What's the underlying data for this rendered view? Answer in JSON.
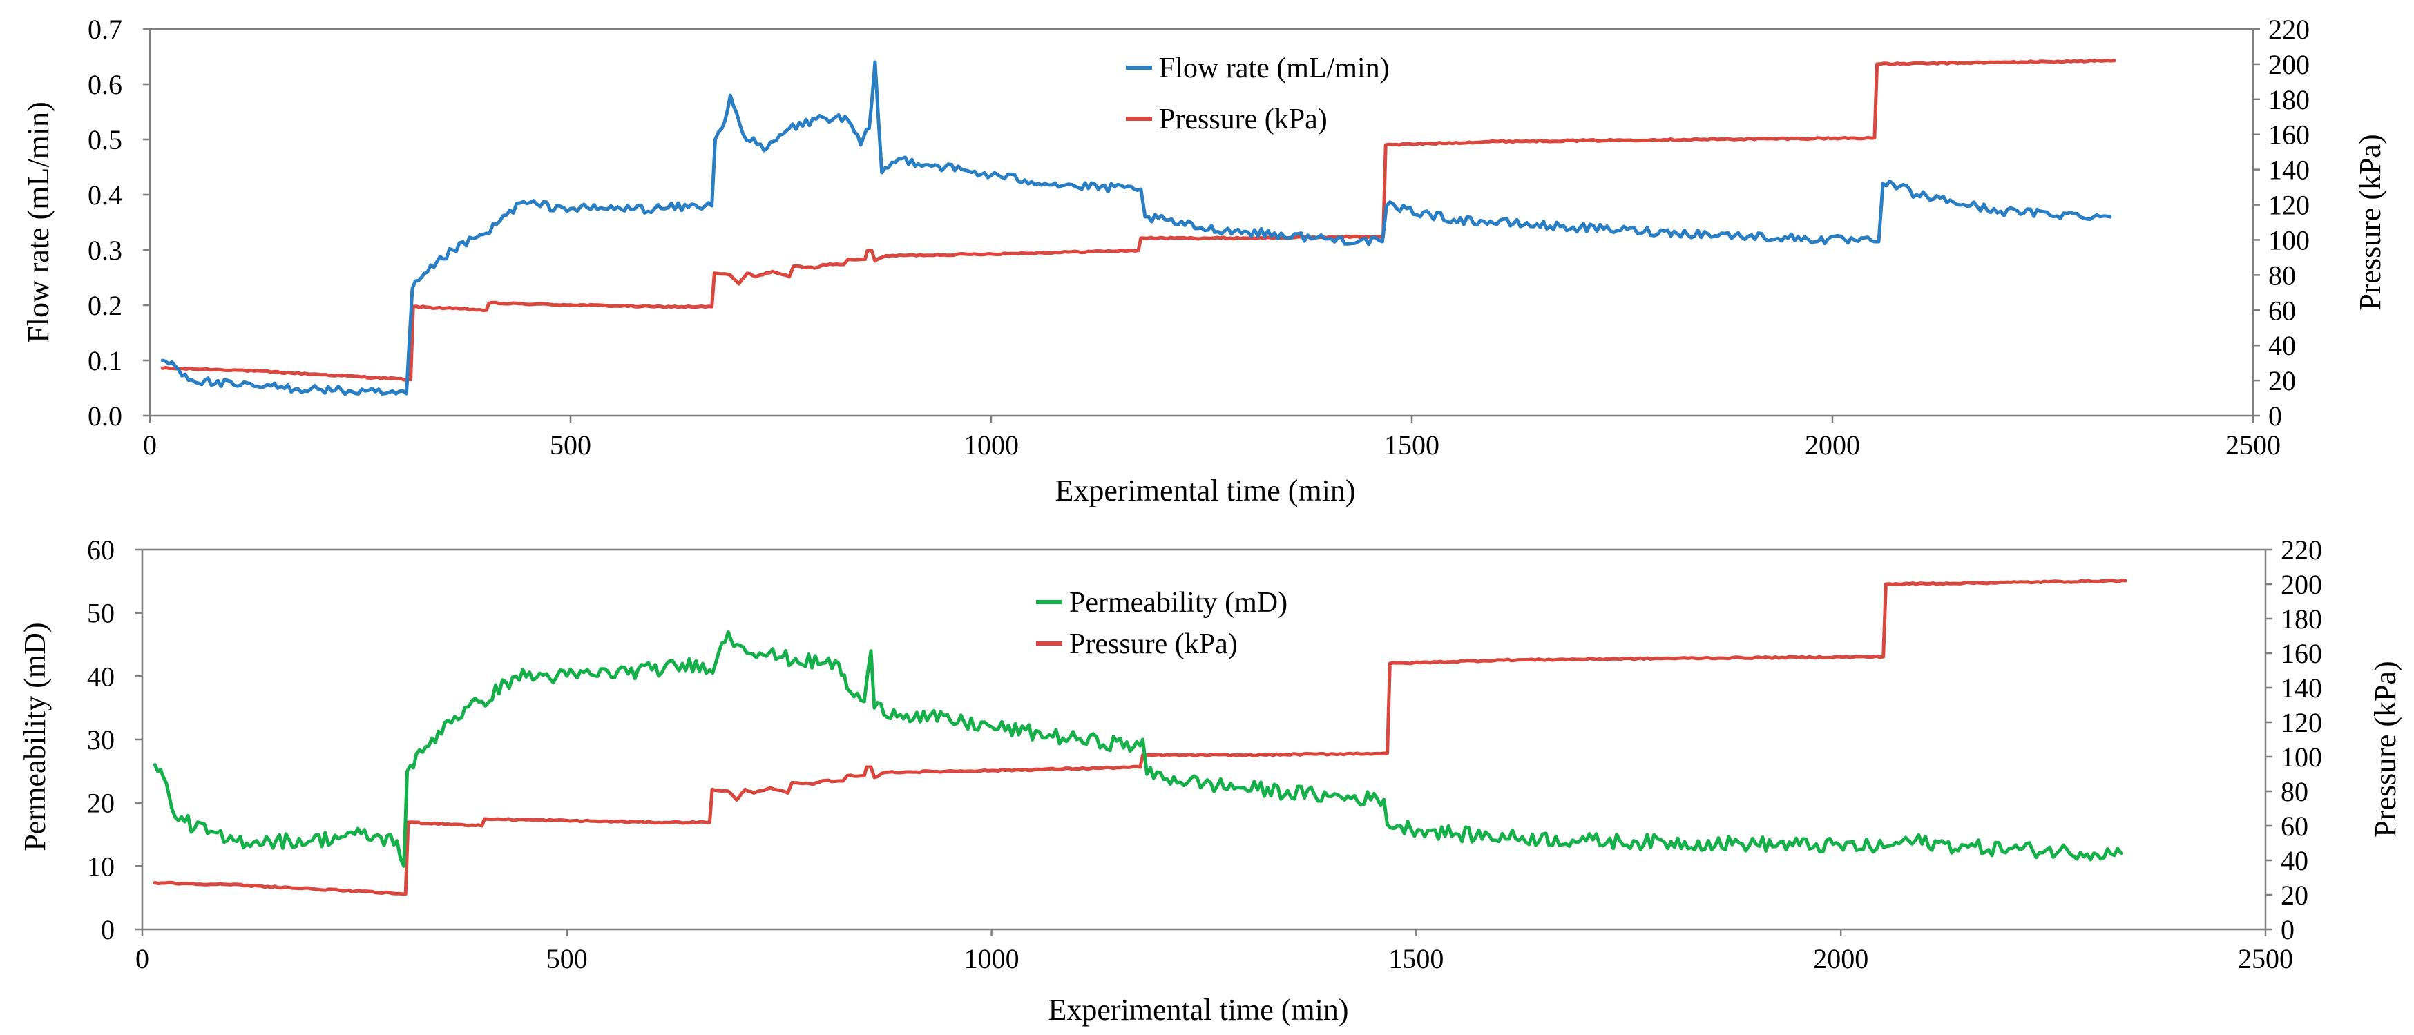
{
  "chart_data": [
    {
      "type": "line",
      "xlabel": "Experimental time (min)",
      "ylabel_left": "Flow rate (mL/min)",
      "ylabel_right": "Pressure (kPa)",
      "xlim": [
        0,
        2500
      ],
      "xticks": [
        0,
        500,
        1000,
        1500,
        2000,
        2500
      ],
      "ylim_left": [
        0,
        0.7
      ],
      "yticks_left": [
        0,
        0.1,
        0.2,
        0.3,
        0.4,
        0.5,
        0.6,
        0.7
      ],
      "ylim_right": [
        0,
        220
      ],
      "yticks_right": [
        0,
        20,
        40,
        60,
        80,
        100,
        120,
        140,
        160,
        180,
        200,
        220
      ],
      "legend": [
        "Flow rate (mL/min)",
        "Pressure (kPa)"
      ],
      "series": [
        {
          "name": "Flow rate (mL/min)",
          "axis": "left",
          "color": "#2a7fc4",
          "noise": 0.008,
          "points": [
            [
              15,
              0.1
            ],
            [
              30,
              0.09
            ],
            [
              50,
              0.065
            ],
            [
              100,
              0.055
            ],
            [
              200,
              0.048
            ],
            [
              280,
              0.04
            ],
            [
              305,
              0.04
            ],
            [
              312,
              0.23
            ],
            [
              330,
              0.26
            ],
            [
              360,
              0.3
            ],
            [
              400,
              0.33
            ],
            [
              440,
              0.385
            ],
            [
              500,
              0.375
            ],
            [
              600,
              0.375
            ],
            [
              660,
              0.38
            ],
            [
              668,
              0.38
            ],
            [
              672,
              0.5
            ],
            [
              680,
              0.52
            ],
            [
              690,
              0.58
            ],
            [
              705,
              0.51
            ],
            [
              730,
              0.48
            ],
            [
              760,
              0.52
            ],
            [
              800,
              0.54
            ],
            [
              830,
              0.535
            ],
            [
              845,
              0.49
            ],
            [
              855,
              0.52
            ],
            [
              862,
              0.64
            ],
            [
              870,
              0.44
            ],
            [
              890,
              0.465
            ],
            [
              1000,
              0.435
            ],
            [
              1100,
              0.415
            ],
            [
              1170,
              0.41
            ],
            [
              1178,
              0.41
            ],
            [
              1183,
              0.36
            ],
            [
              1250,
              0.34
            ],
            [
              1400,
              0.32
            ],
            [
              1465,
              0.315
            ],
            [
              1470,
              0.38
            ],
            [
              1550,
              0.355
            ],
            [
              1700,
              0.34
            ],
            [
              1900,
              0.325
            ],
            [
              2050,
              0.315
            ],
            [
              2055,
              0.315
            ],
            [
              2060,
              0.42
            ],
            [
              2080,
              0.415
            ],
            [
              2100,
              0.4
            ],
            [
              2200,
              0.37
            ],
            [
              2330,
              0.36
            ]
          ]
        },
        {
          "name": "Pressure (kPa)",
          "axis": "right",
          "color": "#d9473e",
          "noise": 0.4,
          "points": [
            [
              15,
              27
            ],
            [
              100,
              26
            ],
            [
              200,
              23.5
            ],
            [
              310,
              20.5
            ],
            [
              313,
              62
            ],
            [
              360,
              61
            ],
            [
              400,
              60
            ],
            [
              403,
              64
            ],
            [
              500,
              63
            ],
            [
              600,
              62
            ],
            [
              668,
              62
            ],
            [
              671,
              81
            ],
            [
              690,
              80
            ],
            [
              700,
              75
            ],
            [
              710,
              81
            ],
            [
              720,
              79
            ],
            [
              725,
              80
            ],
            [
              740,
              82
            ],
            [
              760,
              79
            ],
            [
              765,
              85
            ],
            [
              790,
              84
            ],
            [
              800,
              86
            ],
            [
              820,
              86
            ],
            [
              825,
              86
            ],
            [
              830,
              89
            ],
            [
              850,
              89
            ],
            [
              853,
              94
            ],
            [
              858,
              94
            ],
            [
              862,
              88
            ],
            [
              875,
              91
            ],
            [
              1000,
              92
            ],
            [
              1175,
              94
            ],
            [
              1178,
              101
            ],
            [
              1300,
              101
            ],
            [
              1466,
              102
            ],
            [
              1469,
              154
            ],
            [
              1600,
              156
            ],
            [
              1800,
              157
            ],
            [
              2050,
              158
            ],
            [
              2053,
              200
            ],
            [
              2200,
              201
            ],
            [
              2335,
              202
            ]
          ]
        }
      ]
    },
    {
      "type": "line",
      "xlabel": "Experimental time (min)",
      "ylabel_left": "Permeability (mD)",
      "ylabel_right": "Pressure (kPa)",
      "xlim": [
        0,
        2500
      ],
      "xticks": [
        0,
        500,
        1000,
        1500,
        2000,
        2500
      ],
      "ylim_left": [
        0,
        60
      ],
      "yticks_left": [
        0,
        10,
        20,
        30,
        40,
        50,
        60
      ],
      "ylim_right": [
        0,
        220
      ],
      "yticks_right": [
        0,
        20,
        40,
        60,
        80,
        100,
        120,
        140,
        160,
        180,
        200,
        220
      ],
      "legend": [
        "Permeability (mD)",
        "Pressure (kPa)"
      ],
      "series": [
        {
          "name": "Permeability (mD)",
          "axis": "left",
          "color": "#16b04a",
          "noise": 1.2,
          "points": [
            [
              15,
              26
            ],
            [
              25,
              24
            ],
            [
              35,
              19
            ],
            [
              50,
              17
            ],
            [
              100,
              14
            ],
            [
              150,
              14
            ],
            [
              200,
              14
            ],
            [
              250,
              15
            ],
            [
              300,
              14
            ],
            [
              308,
              10
            ],
            [
              312,
              25
            ],
            [
              330,
              28
            ],
            [
              360,
              33
            ],
            [
              400,
              36
            ],
            [
              440,
              40
            ],
            [
              500,
              40
            ],
            [
              600,
              41
            ],
            [
              660,
              42
            ],
            [
              668,
              41
            ],
            [
              675,
              42
            ],
            [
              690,
              47
            ],
            [
              700,
              45
            ],
            [
              750,
              43
            ],
            [
              800,
              42
            ],
            [
              820,
              42
            ],
            [
              830,
              38
            ],
            [
              850,
              36
            ],
            [
              858,
              44
            ],
            [
              862,
              35
            ],
            [
              900,
              34
            ],
            [
              1000,
              32
            ],
            [
              1100,
              30
            ],
            [
              1175,
              29
            ],
            [
              1178,
              30
            ],
            [
              1183,
              24.5
            ],
            [
              1250,
              23
            ],
            [
              1400,
              21
            ],
            [
              1462,
              20.5
            ],
            [
              1466,
              16.5
            ],
            [
              1550,
              15
            ],
            [
              1700,
              14
            ],
            [
              1900,
              13.5
            ],
            [
              2050,
              13
            ],
            [
              2080,
              14
            ],
            [
              2150,
              13
            ],
            [
              2330,
              12
            ]
          ]
        },
        {
          "name": "Pressure (kPa)",
          "axis": "right",
          "color": "#d9473e",
          "noise": 0.4,
          "points": [
            [
              15,
              27
            ],
            [
              100,
              26
            ],
            [
              200,
              23.5
            ],
            [
              310,
              20.5
            ],
            [
              313,
              62
            ],
            [
              360,
              61
            ],
            [
              400,
              60
            ],
            [
              403,
              64
            ],
            [
              500,
              63
            ],
            [
              600,
              62
            ],
            [
              668,
              62
            ],
            [
              671,
              81
            ],
            [
              690,
              80
            ],
            [
              700,
              75
            ],
            [
              710,
              81
            ],
            [
              720,
              79
            ],
            [
              725,
              80
            ],
            [
              740,
              82
            ],
            [
              760,
              79
            ],
            [
              765,
              85
            ],
            [
              790,
              84
            ],
            [
              800,
              86
            ],
            [
              820,
              86
            ],
            [
              825,
              86
            ],
            [
              830,
              89
            ],
            [
              850,
              89
            ],
            [
              853,
              94
            ],
            [
              858,
              94
            ],
            [
              862,
              88
            ],
            [
              875,
              91
            ],
            [
              1000,
              92
            ],
            [
              1175,
              94
            ],
            [
              1178,
              101
            ],
            [
              1300,
              101
            ],
            [
              1466,
              102
            ],
            [
              1469,
              154
            ],
            [
              1600,
              156
            ],
            [
              1800,
              157
            ],
            [
              2050,
              158
            ],
            [
              2053,
              200
            ],
            [
              2200,
              201
            ],
            [
              2335,
              202
            ]
          ]
        }
      ]
    }
  ]
}
